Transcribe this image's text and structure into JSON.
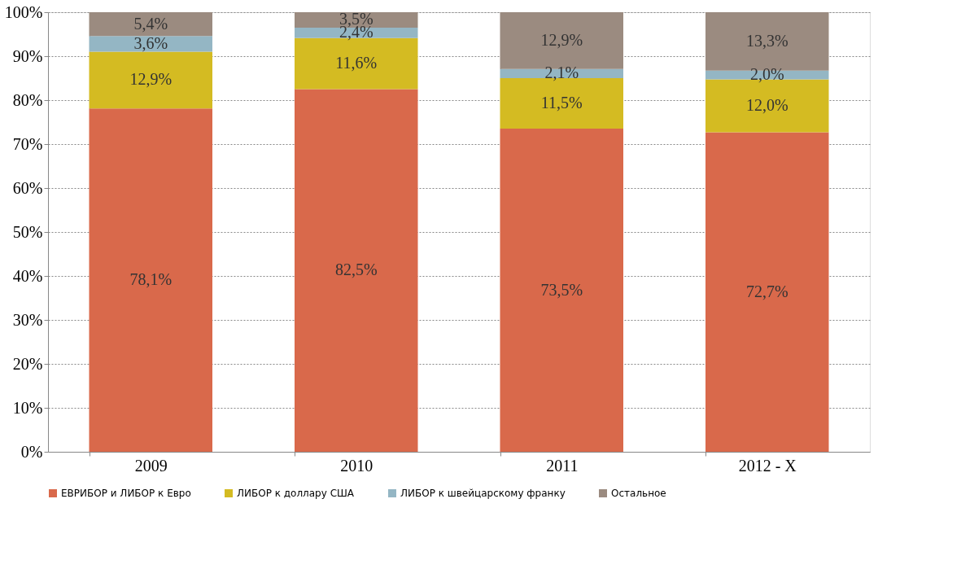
{
  "chart_data": {
    "type": "bar",
    "stacked": true,
    "categories": [
      "2009",
      "2010",
      "2011",
      "2012 - X"
    ],
    "series": [
      {
        "name": "ЕВРИБОР и ЛИБОР к Евро",
        "color": "#d9694b",
        "values": [
          78.1,
          82.5,
          73.5,
          72.7
        ],
        "value_labels": [
          "78,1%",
          "82,5%",
          "73,5%",
          "72,7%"
        ]
      },
      {
        "name": "ЛИБОР к доллару США",
        "color": "#d4bb22",
        "values": [
          12.9,
          11.6,
          11.5,
          12.0
        ],
        "value_labels": [
          "12,9%",
          "11,6%",
          "11,5%",
          "12,0%"
        ]
      },
      {
        "name": "ЛИБОР к швейцарскому франку",
        "color": "#94b6c4",
        "values": [
          3.6,
          2.4,
          2.1,
          2.0
        ],
        "value_labels": [
          "3,6%",
          "2,4%",
          "2,1%",
          "2,0%"
        ]
      },
      {
        "name": "Остальное",
        "color": "#9b8b80",
        "values": [
          5.4,
          3.5,
          12.9,
          13.3
        ],
        "value_labels": [
          "5,4%",
          "3,5%",
          "12,9%",
          "13,3%"
        ]
      }
    ],
    "ylim": [
      0,
      100
    ],
    "yticks": [
      {
        "value": 0,
        "label": "0%"
      },
      {
        "value": 10,
        "label": "10%"
      },
      {
        "value": 20,
        "label": "20%"
      },
      {
        "value": 30,
        "label": "30%"
      },
      {
        "value": 40,
        "label": "40%"
      },
      {
        "value": 50,
        "label": "50%"
      },
      {
        "value": 60,
        "label": "60%"
      },
      {
        "value": 70,
        "label": "70%"
      },
      {
        "value": 80,
        "label": "80%"
      },
      {
        "value": 90,
        "label": "90%"
      },
      {
        "value": 100,
        "label": "100%"
      }
    ],
    "grid": true,
    "legend": "bottom"
  }
}
